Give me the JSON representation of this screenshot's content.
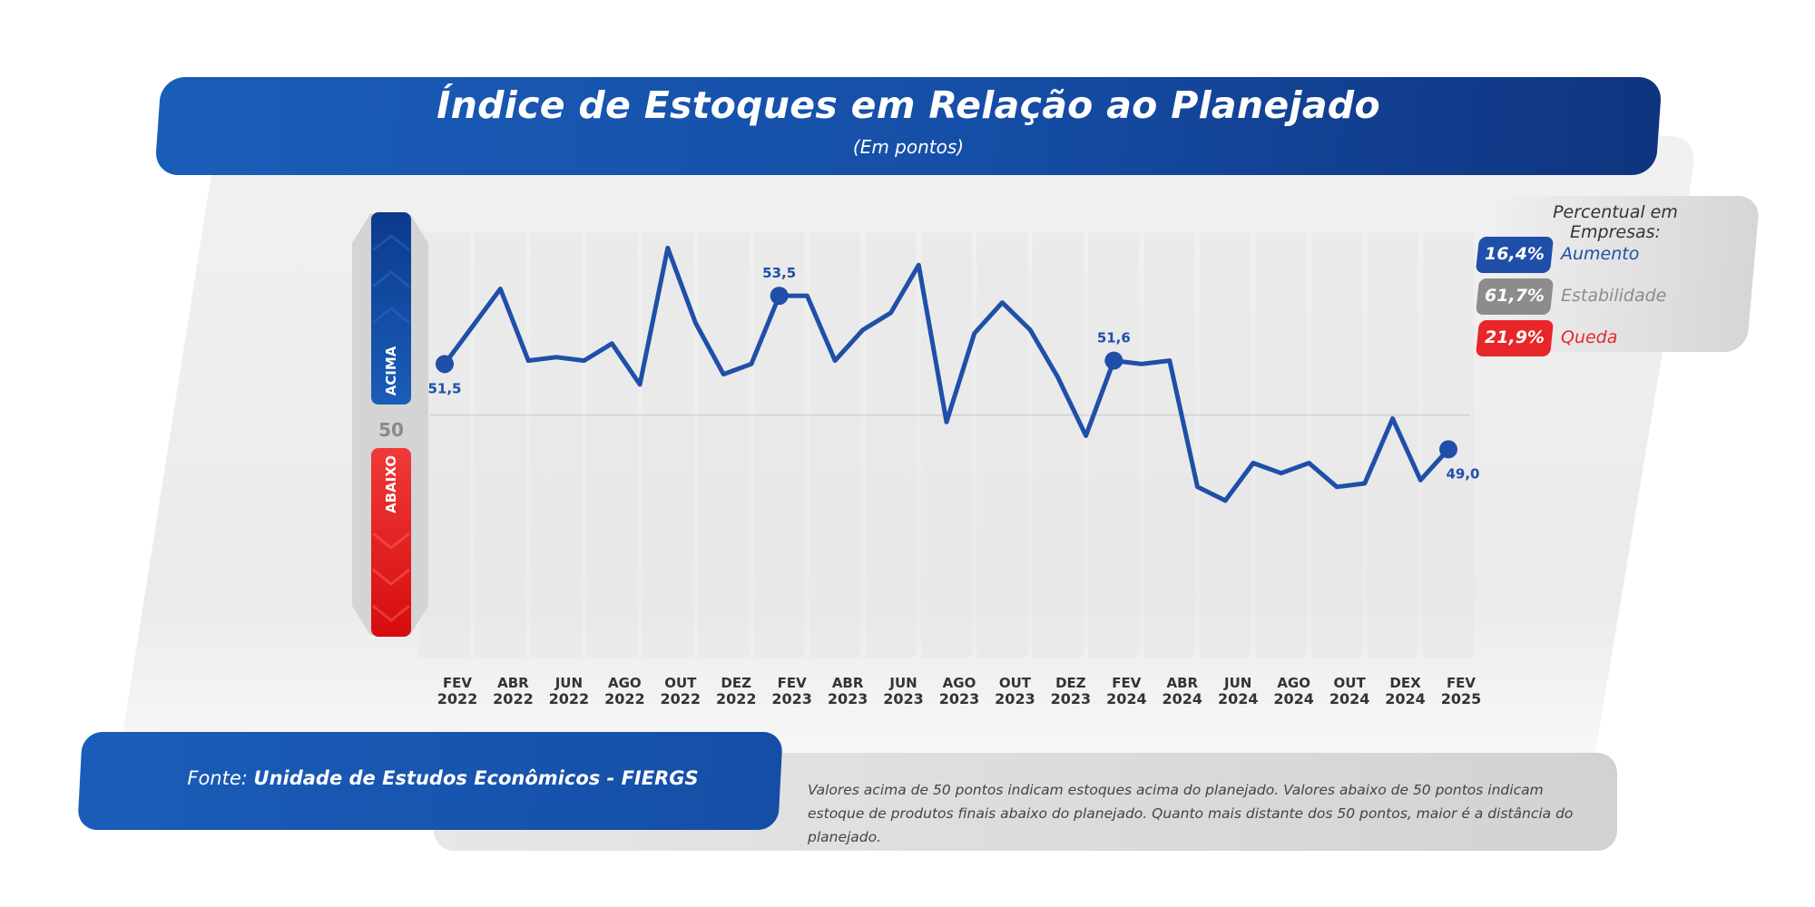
{
  "title": "Índice de Estoques em Relação ao Planejado",
  "subtitle": "(Em pontos)",
  "legend": {
    "title": "Percentual em Empresas:",
    "items": [
      {
        "value": "16,4%",
        "label": "Aumento",
        "color": "#1f4fa8"
      },
      {
        "value": "61,7%",
        "label": "Estabilidade",
        "color": "#8c8c8c"
      },
      {
        "value": "21,9%",
        "label": "Queda",
        "color": "#e8262a"
      }
    ]
  },
  "thermometer": {
    "upper_label": "ACIMA",
    "middle_label": "50",
    "lower_label": "ABAIXO"
  },
  "source": {
    "prefix": "Fonte: ",
    "name": "Unidade de Estudos Econômicos - FIERGS"
  },
  "note": "Valores acima de 50 pontos indicam estoques acima do planejado. Valores abaixo de 50 pontos indicam estoque de produtos finais abaixo do planejado. Quanto mais distante dos 50 pontos, maior é a distância do planejado.",
  "colors": {
    "line": "#1f4fa8",
    "accent_blue": "#1a5db8",
    "accent_red": "#e8262a"
  },
  "chart_data": {
    "type": "line",
    "title": "Índice de Estoques em Relação ao Planejado",
    "subtitle": "(Em pontos)",
    "reference_value": 50,
    "ylim": [
      42.5,
      56
    ],
    "x_tick_labels": [
      [
        "FEV",
        "2022"
      ],
      [
        "ABR",
        "2022"
      ],
      [
        "JUN",
        "2022"
      ],
      [
        "AGO",
        "2022"
      ],
      [
        "OUT",
        "2022"
      ],
      [
        "DEZ",
        "2022"
      ],
      [
        "FEV",
        "2023"
      ],
      [
        "ABR",
        "2023"
      ],
      [
        "JUN",
        "2023"
      ],
      [
        "AGO",
        "2023"
      ],
      [
        "OUT",
        "2023"
      ],
      [
        "DEZ",
        "2023"
      ],
      [
        "FEV",
        "2024"
      ],
      [
        "ABR",
        "2024"
      ],
      [
        "JUN",
        "2024"
      ],
      [
        "AGO",
        "2024"
      ],
      [
        "OUT",
        "2024"
      ],
      [
        "DEX",
        "2024"
      ],
      [
        "FEV",
        "2025"
      ]
    ],
    "series": [
      {
        "values": [
          51.5,
          52.6,
          53.7,
          51.6,
          51.7,
          51.6,
          52.1,
          50.9,
          54.9,
          52.7,
          51.2,
          51.5,
          53.5,
          53.5,
          51.6,
          52.5,
          53.0,
          54.4,
          49.8,
          52.4,
          53.3,
          52.5,
          51.1,
          49.4,
          51.6,
          51.5,
          51.6,
          47.9,
          47.5,
          48.6,
          48.3,
          48.6,
          47.9,
          48.0,
          49.9,
          48.1,
          49.0
        ]
      }
    ],
    "data_labels": [
      {
        "index": 0,
        "text": "51,5"
      },
      {
        "index": 12,
        "text": "53,5"
      },
      {
        "index": 24,
        "text": "51,6"
      },
      {
        "index": 36,
        "text": "49,0"
      }
    ]
  }
}
